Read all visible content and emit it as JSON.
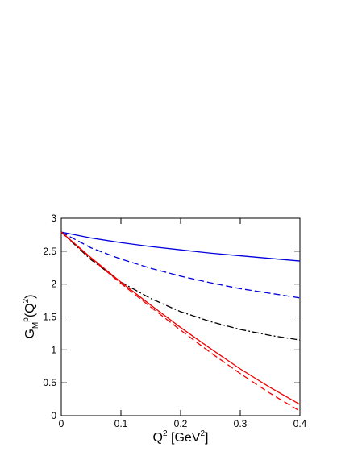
{
  "chart_data": {
    "type": "line",
    "x_label": {
      "base": "Q",
      "sup": "2",
      "rest": " [GeV",
      "unit_sup": "2",
      "end": "]"
    },
    "y_label": {
      "base": "G",
      "sub": "M",
      "sup": "p",
      "rest": "(Q",
      "arg_sup": "2",
      "end": ")"
    },
    "x": [
      0,
      0.05,
      0.1,
      0.15,
      0.2,
      0.25,
      0.3,
      0.35,
      0.4
    ],
    "series": [
      {
        "color": "#0000dd",
        "style": "solid",
        "values": [
          2.79,
          2.7,
          2.63,
          2.57,
          2.52,
          2.47,
          2.43,
          2.39,
          2.35
        ]
      },
      {
        "color": "#0000dd",
        "style": "dashed",
        "values": [
          2.79,
          2.55,
          2.38,
          2.24,
          2.12,
          2.02,
          1.93,
          1.86,
          1.79
        ]
      },
      {
        "color": "#000000",
        "style": "dashdot",
        "values": [
          2.79,
          2.37,
          2.03,
          1.78,
          1.58,
          1.43,
          1.31,
          1.22,
          1.15
        ]
      },
      {
        "color": "#ee0000",
        "style": "solid",
        "values": [
          2.79,
          2.4,
          2.03,
          1.68,
          1.34,
          1.02,
          0.71,
          0.43,
          0.17
        ]
      },
      {
        "color": "#ee0000",
        "style": "dashed",
        "values": [
          2.79,
          2.39,
          2.01,
          1.65,
          1.3,
          0.96,
          0.64,
          0.34,
          0.07
        ]
      }
    ],
    "xlim": [
      0,
      0.4
    ],
    "xticks": [
      0,
      0.1,
      0.2,
      0.3,
      0.4
    ],
    "ylim": [
      0,
      3
    ],
    "yticks": [
      0,
      0.5,
      1,
      1.5,
      2,
      2.5,
      3
    ]
  }
}
